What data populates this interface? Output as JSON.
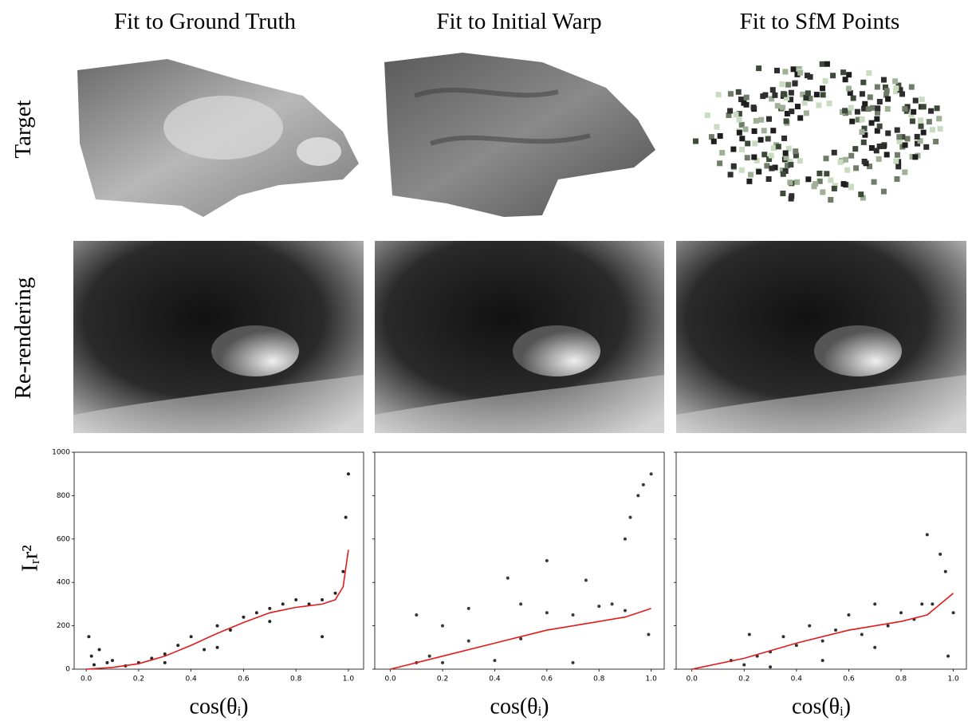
{
  "columns": [
    "Fit to Ground Truth",
    "Fit to Initial Warp",
    "Fit to SfM Points"
  ],
  "rows": [
    "Target",
    "Re-rendering"
  ],
  "chart_data": [
    {
      "type": "scatter",
      "xlabel": "cos(θᵢ)",
      "ylabel": "Iᵣr²",
      "xlim": [
        -0.046,
        1.058
      ],
      "ylim": [
        0,
        1000
      ],
      "xticks": [
        {
          "value": 0,
          "label": "0.0"
        },
        0.2,
        0.4,
        0.6,
        0.8,
        {
          "value": 1,
          "label": "1.0"
        }
      ],
      "yticks": [
        0,
        200,
        400,
        600,
        800,
        1000
      ],
      "series": [
        {
          "style": "points",
          "color": "#262626",
          "x": [
            0.01,
            0.02,
            0.03,
            0.05,
            0.08,
            0.1,
            0.15,
            0.2,
            0.25,
            0.3,
            0.35,
            0.4,
            0.45,
            0.5,
            0.55,
            0.6,
            0.65,
            0.7,
            0.75,
            0.8,
            0.85,
            0.9,
            0.95,
            0.98,
            0.99,
            1.0,
            0.5,
            0.3,
            0.7,
            0.9
          ],
          "values": [
            150,
            60,
            20,
            90,
            30,
            40,
            15,
            30,
            50,
            70,
            110,
            150,
            90,
            200,
            180,
            240,
            260,
            280,
            300,
            320,
            300,
            320,
            350,
            450,
            700,
            900,
            100,
            30,
            220,
            150
          ]
        },
        {
          "style": "line",
          "color": "#e31a1c",
          "x": [
            0,
            0.1,
            0.2,
            0.3,
            0.4,
            0.5,
            0.6,
            0.7,
            0.8,
            0.9,
            0.95,
            0.98,
            1.0
          ],
          "values": [
            0,
            8,
            25,
            60,
            110,
            165,
            215,
            260,
            285,
            300,
            320,
            380,
            550
          ]
        }
      ]
    },
    {
      "type": "scatter",
      "xlabel": "cos(θᵢ)",
      "xlim": [
        -0.06,
        1.05
      ],
      "ylim": [
        0,
        1000
      ],
      "xticks": [
        {
          "value": 0,
          "label": "0.0"
        },
        0.2,
        0.4,
        0.6,
        0.8,
        {
          "value": 1,
          "label": "1.0"
        }
      ],
      "series": [
        {
          "style": "points",
          "color": "#3a3a3a",
          "x": [
            0.1,
            0.15,
            0.2,
            0.3,
            0.4,
            0.5,
            0.6,
            0.7,
            0.8,
            0.9,
            0.95,
            1.0,
            0.1,
            0.3,
            0.5,
            0.7,
            0.9,
            0.2,
            0.45,
            0.6,
            0.75,
            0.85,
            0.92,
            0.97,
            0.99
          ],
          "values": [
            250,
            60,
            30,
            280,
            40,
            300,
            260,
            30,
            290,
            600,
            800,
            900,
            30,
            130,
            140,
            250,
            270,
            200,
            420,
            500,
            410,
            300,
            700,
            850,
            160
          ]
        },
        {
          "style": "line",
          "color": "#e31a1c",
          "x": [
            0,
            0.2,
            0.4,
            0.6,
            0.8,
            0.9,
            1.0
          ],
          "values": [
            0,
            60,
            120,
            180,
            220,
            240,
            280
          ]
        }
      ]
    },
    {
      "type": "scatter",
      "xlabel": "cos(θᵢ)",
      "xlim": [
        -0.06,
        1.05
      ],
      "ylim": [
        0,
        1000
      ],
      "xticks": [
        {
          "value": 0,
          "label": "0.0"
        },
        0.2,
        0.4,
        0.6,
        0.8,
        {
          "value": 1,
          "label": "1.0"
        }
      ],
      "series": [
        {
          "style": "points",
          "color": "#303030",
          "x": [
            0.15,
            0.2,
            0.22,
            0.25,
            0.3,
            0.35,
            0.4,
            0.45,
            0.5,
            0.55,
            0.6,
            0.65,
            0.7,
            0.75,
            0.8,
            0.85,
            0.9,
            0.92,
            0.95,
            0.97,
            0.98,
            1.0,
            0.3,
            0.5,
            0.7,
            0.88
          ],
          "values": [
            40,
            20,
            160,
            60,
            80,
            150,
            110,
            200,
            130,
            180,
            250,
            160,
            300,
            200,
            260,
            230,
            620,
            300,
            530,
            450,
            60,
            260,
            10,
            40,
            100,
            300
          ]
        },
        {
          "style": "line",
          "color": "#e31a1c",
          "x": [
            0,
            0.2,
            0.4,
            0.6,
            0.8,
            0.9,
            1.0
          ],
          "values": [
            0,
            50,
            120,
            180,
            220,
            250,
            350
          ]
        }
      ]
    }
  ]
}
